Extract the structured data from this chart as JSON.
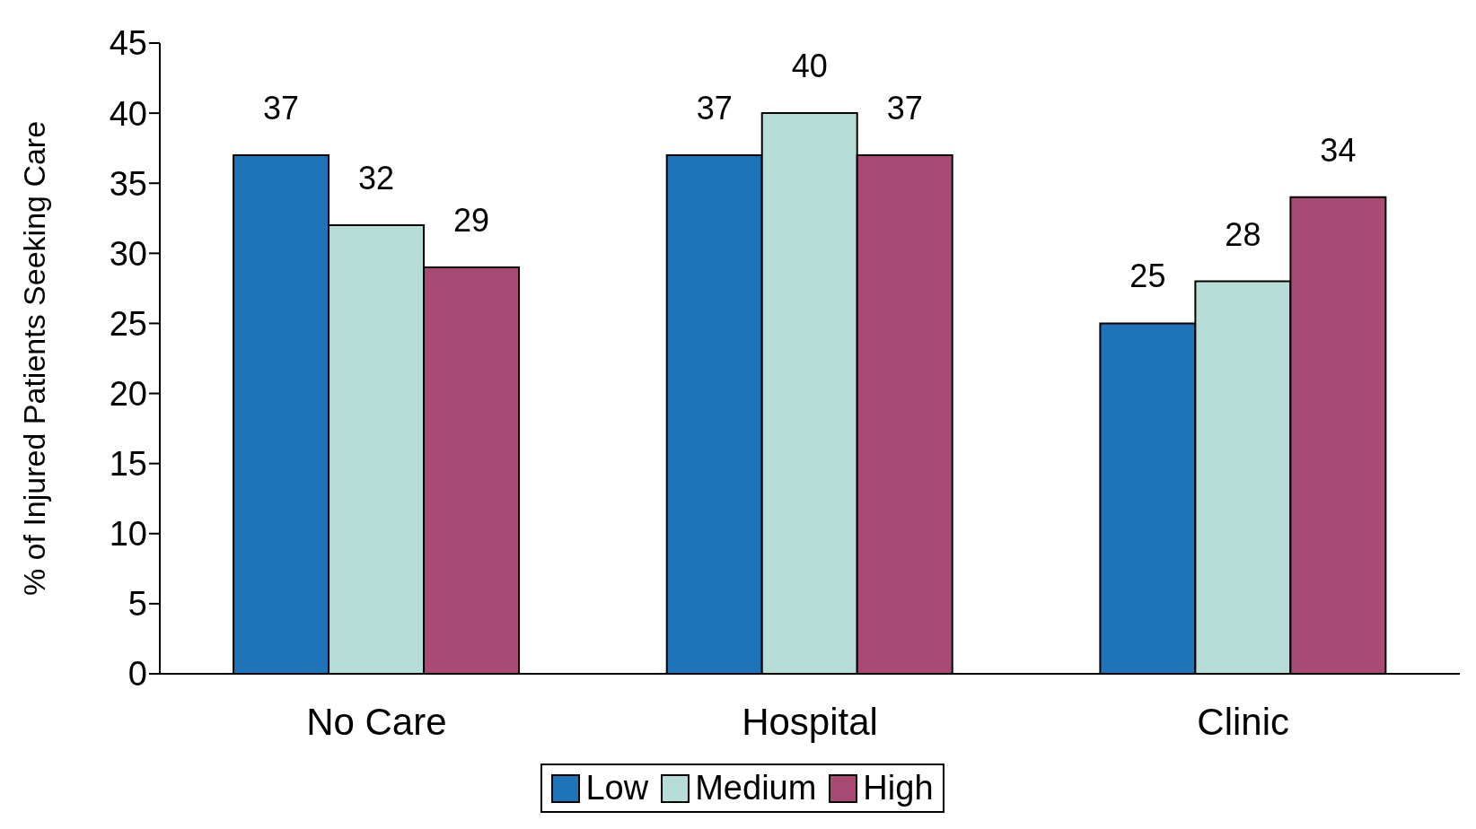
{
  "chart_data": {
    "type": "bar",
    "ylabel": "% of Injured Patients Seeking Care",
    "categories": [
      "No Care",
      "Hospital",
      "Clinic"
    ],
    "series": [
      {
        "name": "Low",
        "color": "#1f74b9",
        "values": [
          37,
          37,
          25
        ]
      },
      {
        "name": "Medium",
        "color": "#b7ddd8",
        "values": [
          32,
          40,
          28
        ]
      },
      {
        "name": "High",
        "color": "#a94a74",
        "values": [
          29,
          37,
          34
        ]
      }
    ],
    "ylim": [
      0,
      45
    ],
    "yticks": [
      0,
      5,
      10,
      15,
      20,
      25,
      30,
      35,
      40,
      45
    ],
    "grid": false,
    "legend": "bottom",
    "data_labels": true
  }
}
